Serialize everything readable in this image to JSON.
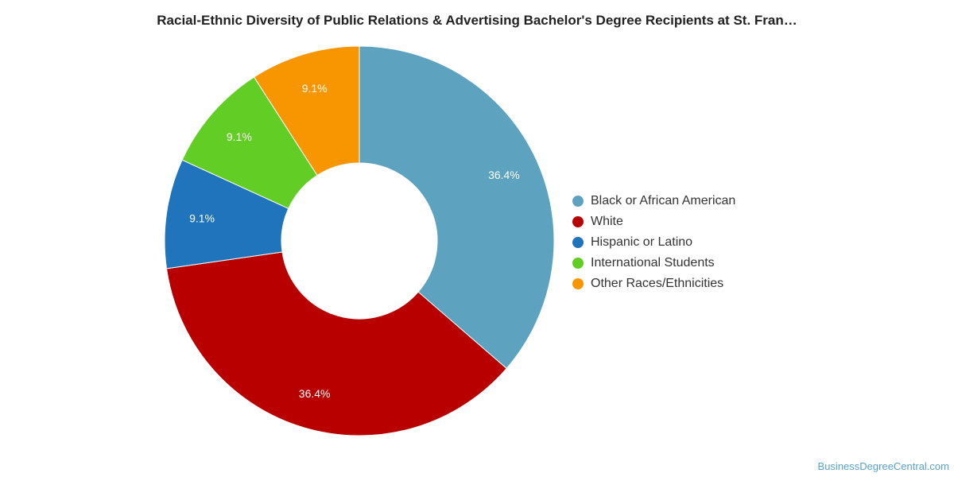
{
  "chart_data": {
    "type": "pie",
    "title": "Racial-Ethnic Diversity of Public Relations & Advertising Bachelor's Degree Recipients at St. Fran…",
    "categories": [
      "Black or African American",
      "White",
      "Hispanic or Latino",
      "International Students",
      "Other Races/Ethnicities"
    ],
    "values": [
      36.4,
      36.4,
      9.1,
      9.1,
      9.1
    ],
    "value_labels": [
      "36.4%",
      "36.4%",
      "9.1%",
      "9.1%",
      "9.1%"
    ],
    "colors": [
      "#5da3c0",
      "#b80000",
      "#1f74bb",
      "#62cd24",
      "#f79600"
    ],
    "donut": true,
    "legend_position": "right"
  },
  "credit": "BusinessDegreeCentral.com"
}
